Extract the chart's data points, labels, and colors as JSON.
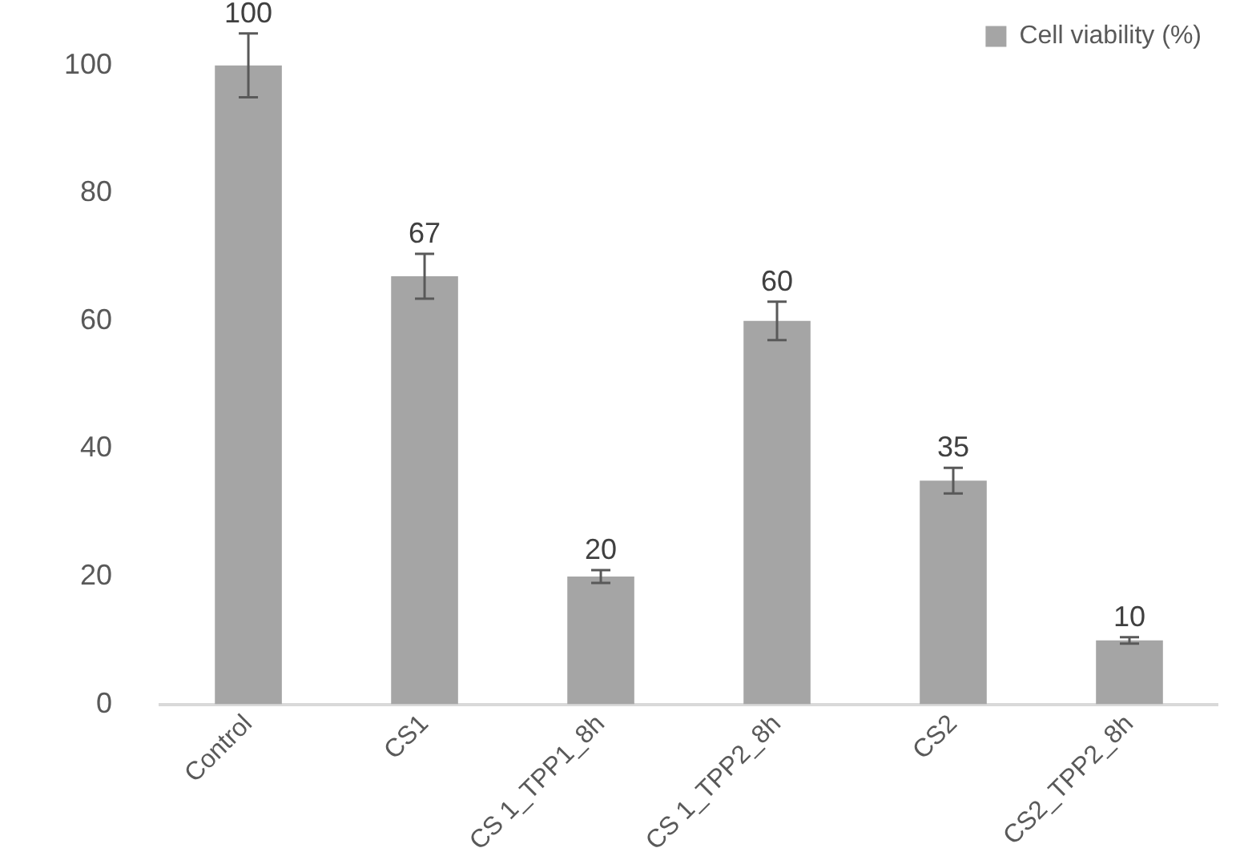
{
  "chart_data": {
    "type": "bar",
    "categories": [
      "Control",
      "CS1",
      "CS 1_TPP1_8h",
      "CS 1_TPP2_8h",
      "CS2",
      "CS2_TPP2_8h"
    ],
    "series": [
      {
        "name": "Cell viability (%)",
        "color": "#a5a5a5",
        "values": [
          100,
          67,
          20,
          60,
          35,
          10
        ],
        "errors": [
          5,
          3.5,
          1,
          3,
          2,
          0.5
        ]
      }
    ],
    "ylim": [
      0,
      100
    ],
    "yticks": [
      0,
      20,
      40,
      60,
      80,
      100
    ],
    "grid": false,
    "legend": "top right",
    "data_labels": true
  }
}
